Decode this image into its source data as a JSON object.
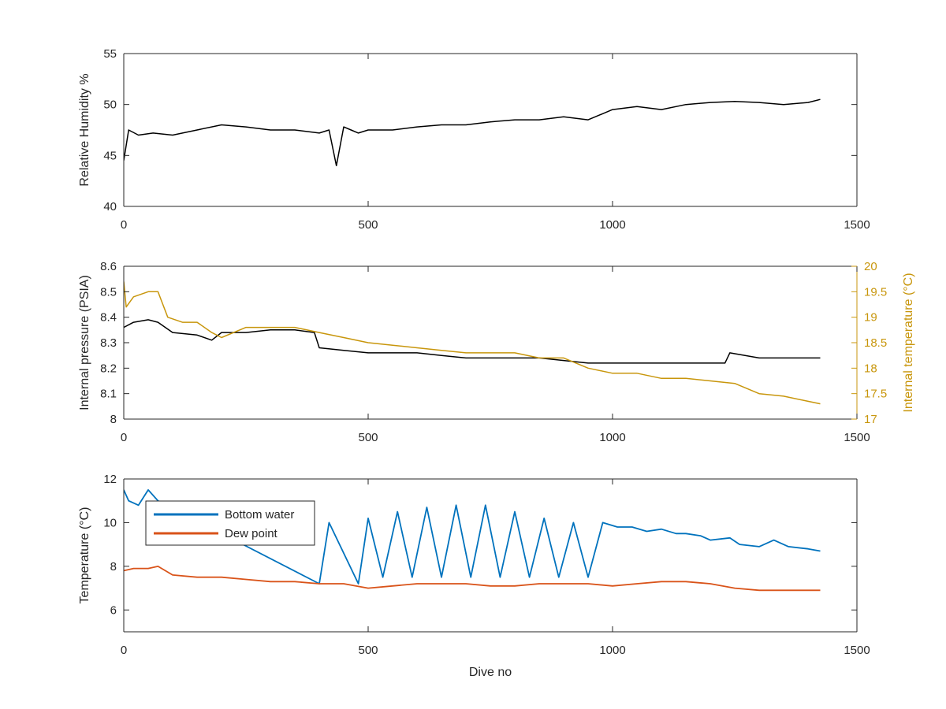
{
  "colors": {
    "black": "#000000",
    "gold": "#c8960c",
    "blue": "#0072bd",
    "orange": "#d95319",
    "axis": "#262626",
    "secondary_axis": "#c8960c"
  },
  "chart_data": [
    {
      "type": "line",
      "id": "humidity",
      "title": "",
      "xlabel": "",
      "ylabel": "Relative Humidity %",
      "xlim": [
        0,
        1500
      ],
      "ylim": [
        40,
        55
      ],
      "xticks": [
        0,
        500,
        1000,
        1500
      ],
      "yticks": [
        40,
        45,
        50,
        55
      ],
      "grid": false,
      "series": [
        {
          "color": "#000000",
          "x": [
            0,
            10,
            30,
            60,
            100,
            150,
            200,
            250,
            300,
            350,
            400,
            420,
            435,
            450,
            465,
            480,
            500,
            550,
            600,
            650,
            700,
            750,
            800,
            850,
            900,
            950,
            1000,
            1050,
            1100,
            1150,
            1200,
            1250,
            1300,
            1350,
            1400,
            1425
          ],
          "y": [
            44.5,
            47.5,
            47.0,
            47.2,
            47.0,
            47.5,
            48.0,
            47.8,
            47.5,
            47.5,
            47.2,
            47.5,
            44.0,
            47.8,
            47.5,
            47.2,
            47.5,
            47.5,
            47.8,
            48.0,
            48.0,
            48.3,
            48.5,
            48.5,
            48.8,
            48.5,
            49.5,
            49.8,
            49.5,
            50.0,
            50.2,
            50.3,
            50.2,
            50.0,
            50.2,
            50.5
          ]
        }
      ]
    },
    {
      "type": "line",
      "id": "pressure-temperature",
      "title": "",
      "xlabel": "",
      "ylabel": "Internal pressure (PSIA)",
      "y2label": "Internal temperature (°C)",
      "xlim": [
        0,
        1500
      ],
      "ylim": [
        8.0,
        8.6
      ],
      "y2lim": [
        17,
        20
      ],
      "xticks": [
        0,
        500,
        1000,
        1500
      ],
      "yticks": [
        8.0,
        8.1,
        8.2,
        8.3,
        8.4,
        8.5,
        8.6
      ],
      "y2ticks": [
        17,
        17.5,
        18,
        18.5,
        19,
        19.5,
        20
      ],
      "grid": false,
      "series": [
        {
          "color": "#000000",
          "axis": "left",
          "x": [
            0,
            20,
            50,
            70,
            100,
            150,
            180,
            200,
            250,
            300,
            350,
            390,
            400,
            450,
            500,
            550,
            600,
            650,
            700,
            750,
            800,
            850,
            900,
            950,
            1000,
            1050,
            1100,
            1150,
            1200,
            1230,
            1240,
            1300,
            1350,
            1400,
            1425
          ],
          "y": [
            8.36,
            8.38,
            8.39,
            8.38,
            8.34,
            8.33,
            8.31,
            8.34,
            8.34,
            8.35,
            8.35,
            8.34,
            8.28,
            8.27,
            8.26,
            8.26,
            8.26,
            8.25,
            8.24,
            8.24,
            8.24,
            8.24,
            8.23,
            8.22,
            8.22,
            8.22,
            8.22,
            8.22,
            8.22,
            8.22,
            8.26,
            8.24,
            8.24,
            8.24,
            8.24
          ]
        },
        {
          "color": "#c8960c",
          "axis": "right",
          "x": [
            0,
            5,
            20,
            50,
            70,
            90,
            120,
            150,
            180,
            200,
            250,
            300,
            350,
            400,
            450,
            500,
            550,
            600,
            650,
            700,
            750,
            800,
            850,
            900,
            950,
            1000,
            1050,
            1100,
            1150,
            1200,
            1250,
            1300,
            1350,
            1400,
            1425
          ],
          "y": [
            19.7,
            19.2,
            19.4,
            19.5,
            19.5,
            19.0,
            18.9,
            18.9,
            18.7,
            18.6,
            18.8,
            18.8,
            18.8,
            18.7,
            18.6,
            18.5,
            18.45,
            18.4,
            18.35,
            18.3,
            18.3,
            18.3,
            18.2,
            18.2,
            18.0,
            17.9,
            17.9,
            17.8,
            17.8,
            17.75,
            17.7,
            17.5,
            17.45,
            17.35,
            17.3
          ]
        }
      ]
    },
    {
      "type": "line",
      "id": "temperature",
      "title": "",
      "xlabel": "Dive no",
      "ylabel": "Temperature (°C)",
      "xlim": [
        0,
        1500
      ],
      "ylim": [
        5,
        12
      ],
      "xticks": [
        0,
        500,
        1000,
        1500
      ],
      "yticks": [
        6,
        8,
        10,
        12
      ],
      "grid": false,
      "legend": {
        "position": "top-left",
        "entries": [
          "Bottom water",
          "Dew point"
        ]
      },
      "series": [
        {
          "name": "Bottom water",
          "color": "#0072bd",
          "x": [
            0,
            10,
            30,
            50,
            70,
            400,
            420,
            480,
            500,
            530,
            560,
            590,
            620,
            650,
            680,
            710,
            740,
            770,
            800,
            830,
            860,
            890,
            920,
            950,
            980,
            1010,
            1040,
            1070,
            1100,
            1130,
            1150,
            1180,
            1200,
            1240,
            1260,
            1300,
            1330,
            1360,
            1400,
            1425
          ],
          "y": [
            11.5,
            11.0,
            10.8,
            11.5,
            11.0,
            7.2,
            10.0,
            7.2,
            10.2,
            7.5,
            10.5,
            7.5,
            10.7,
            7.5,
            10.8,
            7.5,
            10.8,
            7.5,
            10.5,
            7.5,
            10.2,
            7.5,
            10.0,
            7.5,
            10.0,
            9.8,
            9.8,
            9.6,
            9.7,
            9.5,
            9.5,
            9.4,
            9.2,
            9.3,
            9.0,
            8.9,
            9.2,
            8.9,
            8.8,
            8.7
          ]
        },
        {
          "name": "Dew point",
          "color": "#d95319",
          "x": [
            0,
            20,
            50,
            70,
            100,
            150,
            200,
            250,
            300,
            350,
            400,
            450,
            500,
            550,
            600,
            650,
            700,
            750,
            800,
            850,
            900,
            950,
            1000,
            1050,
            1100,
            1150,
            1200,
            1250,
            1300,
            1350,
            1400,
            1425
          ],
          "y": [
            7.8,
            7.9,
            7.9,
            8.0,
            7.6,
            7.5,
            7.5,
            7.4,
            7.3,
            7.3,
            7.2,
            7.2,
            7.0,
            7.1,
            7.2,
            7.2,
            7.2,
            7.1,
            7.1,
            7.2,
            7.2,
            7.2,
            7.1,
            7.2,
            7.3,
            7.3,
            7.2,
            7.0,
            6.9,
            6.9,
            6.9,
            6.9
          ]
        }
      ]
    }
  ]
}
